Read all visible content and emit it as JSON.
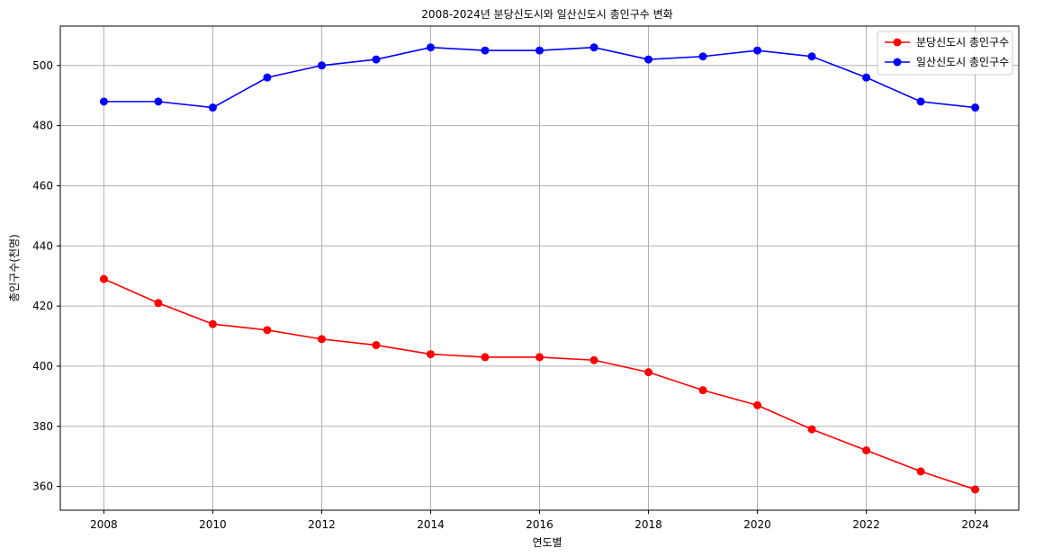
{
  "chart_data": {
    "type": "line",
    "title": "2008-2024년 분당신도시와 일산신도시 총인구수 변화",
    "xlabel": "연도별",
    "ylabel": "총인구수(천명)",
    "x": [
      2008,
      2009,
      2010,
      2011,
      2012,
      2013,
      2014,
      2015,
      2016,
      2017,
      2018,
      2019,
      2020,
      2021,
      2022,
      2023,
      2024
    ],
    "xlim": [
      2007.2,
      2024.8
    ],
    "ylim": [
      352.1,
      513.1
    ],
    "xticks": [
      2008,
      2010,
      2012,
      2014,
      2016,
      2018,
      2020,
      2022,
      2024
    ],
    "yticks": [
      360,
      380,
      400,
      420,
      440,
      460,
      480,
      500
    ],
    "grid": true,
    "legend_position": "top-right",
    "series": [
      {
        "name": "분당신도시 총인구수",
        "color": "#ff0000",
        "marker": "circle",
        "values": [
          429,
          421,
          414,
          412,
          409,
          407,
          404,
          403,
          403,
          402,
          398,
          392,
          387,
          379,
          372,
          365,
          359
        ]
      },
      {
        "name": "일산신도시 총인구수",
        "color": "#0000ff",
        "marker": "circle",
        "values": [
          488,
          488,
          486,
          496,
          500,
          502,
          506,
          505,
          505,
          506,
          502,
          503,
          505,
          503,
          496,
          488,
          486
        ]
      }
    ]
  }
}
